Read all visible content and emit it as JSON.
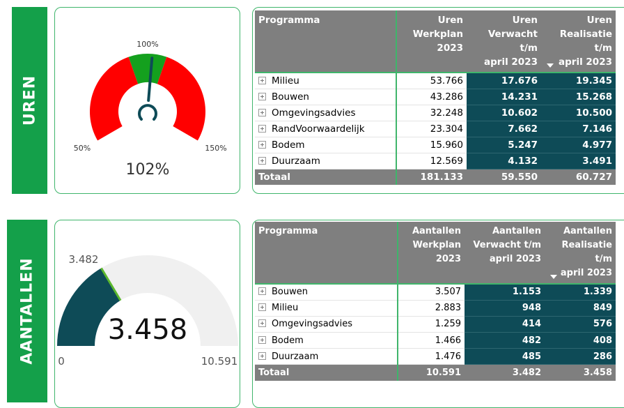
{
  "uren": {
    "label": "UREN",
    "gauge": {
      "value": 102,
      "value_label": "102%",
      "min": {
        "value": 50,
        "label": "50%"
      },
      "max": {
        "value": 150,
        "label": "150%"
      },
      "target": {
        "value": 100,
        "label": "100%"
      },
      "bands": [
        {
          "from": 50,
          "to": 92,
          "color": "#ff0000"
        },
        {
          "from": 92,
          "to": 108,
          "color": "#14a01e"
        },
        {
          "from": 108,
          "to": 150,
          "color": "#ff0000"
        }
      ],
      "needle_color": "#0e4b57"
    },
    "table": {
      "columns": [
        [
          "Programma"
        ],
        [
          "Uren",
          "Werkplan",
          "2023"
        ],
        [
          "Uren",
          "Verwacht t/m",
          "april 2023"
        ],
        [
          "Uren",
          "Realisatie t/m",
          "april 2023"
        ]
      ],
      "rows": [
        [
          "Milieu",
          "53.766",
          "17.676",
          "19.345"
        ],
        [
          "Bouwen",
          "43.286",
          "14.231",
          "15.268"
        ],
        [
          "Omgevingsadvies",
          "32.248",
          "10.602",
          "10.500"
        ],
        [
          "RandVoorwaardelijk",
          "23.304",
          "7.662",
          "7.146"
        ],
        [
          "Bodem",
          "15.960",
          "5.247",
          "4.977"
        ],
        [
          "Duurzaam",
          "12.569",
          "4.132",
          "3.491"
        ]
      ],
      "total": [
        "Totaal",
        "181.133",
        "59.550",
        "60.727"
      ]
    }
  },
  "aantallen": {
    "label": "AANTALLEN",
    "gauge": {
      "value": 3458,
      "value_label": "3.458",
      "min": {
        "value": 0,
        "label": "0"
      },
      "max": {
        "value": 10591,
        "label": "10.591"
      },
      "target": {
        "value": 3482,
        "label": "3.482"
      },
      "fill_color": "#0e4b57",
      "track_color": "#f0f0f0",
      "target_color": "#5cb82e"
    },
    "table": {
      "columns": [
        [
          "Programma"
        ],
        [
          "Aantallen",
          "Werkplan",
          "2023"
        ],
        [
          "Aantallen",
          "Verwacht t/m",
          "april 2023"
        ],
        [
          "Aantallen",
          "Realisatie t/m",
          "april 2023"
        ]
      ],
      "rows": [
        [
          "Bouwen",
          "3.507",
          "1.153",
          "1.339"
        ],
        [
          "Milieu",
          "2.883",
          "948",
          "849"
        ],
        [
          "Omgevingsadvies",
          "1.259",
          "414",
          "576"
        ],
        [
          "Bodem",
          "1.466",
          "482",
          "408"
        ],
        [
          "Duurzaam",
          "1.476",
          "485",
          "286"
        ]
      ],
      "total": [
        "Totaal",
        "10.591",
        "3.482",
        "3.458"
      ]
    }
  }
}
